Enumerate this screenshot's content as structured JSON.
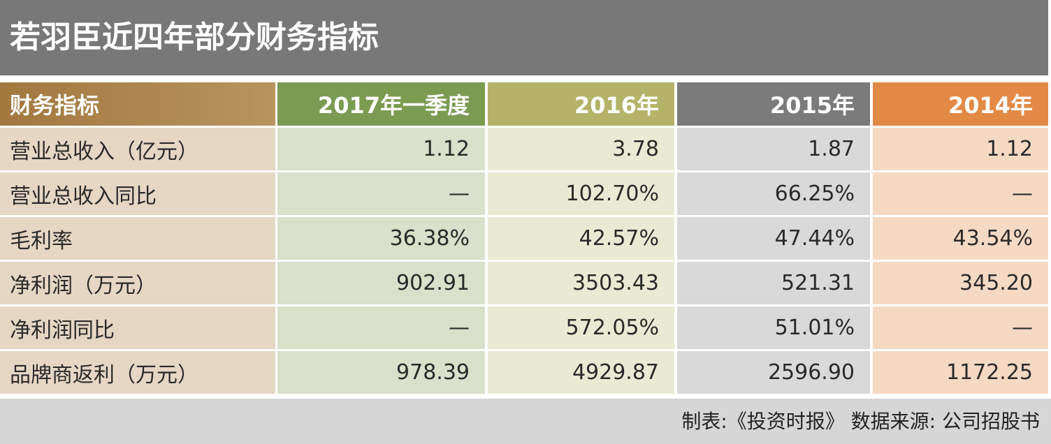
{
  "title": "若羽臣近四年部分财务指标",
  "table": {
    "header": [
      "财务指标",
      "2017年一季度",
      "2016年",
      "2015年",
      "2014年"
    ],
    "rows": [
      [
        "营业总收入（亿元）",
        "1.12",
        "3.78",
        "1.87",
        "1.12"
      ],
      [
        "营业总收入同比",
        "—",
        "102.70%",
        "66.25%",
        "—"
      ],
      [
        "毛利率",
        "36.38%",
        "42.57%",
        "47.44%",
        "43.54%"
      ],
      [
        "净利润（万元）",
        "902.91",
        "3503.43",
        "521.31",
        "345.20"
      ],
      [
        "净利润同比",
        "—",
        "572.05%",
        "51.01%",
        "—"
      ],
      [
        "品牌商返利（万元）",
        "978.39",
        "4929.87",
        "2596.90",
        "1172.25"
      ]
    ]
  },
  "footer": "制表:《投资时报》 数据来源: 公司招股书"
}
